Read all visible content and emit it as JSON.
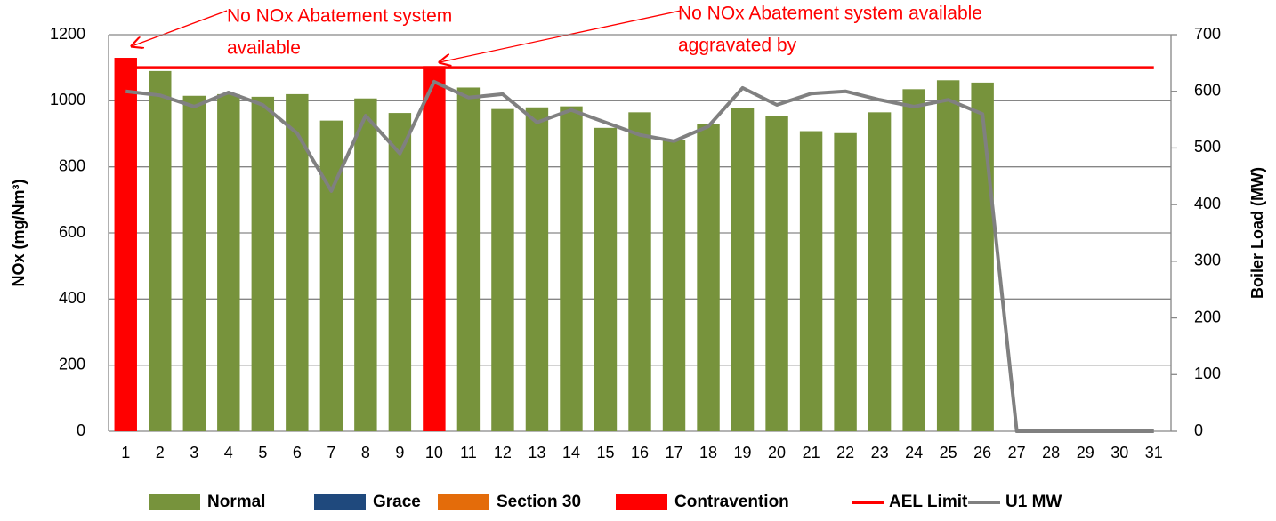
{
  "chart_data": {
    "type": "bar",
    "categories": [
      "1",
      "2",
      "3",
      "4",
      "5",
      "6",
      "7",
      "8",
      "9",
      "10",
      "11",
      "12",
      "13",
      "14",
      "15",
      "16",
      "17",
      "18",
      "19",
      "20",
      "21",
      "22",
      "23",
      "24",
      "25",
      "26",
      "27",
      "28",
      "29",
      "30",
      "31"
    ],
    "series": [
      {
        "name": "Normal",
        "type": "bar",
        "color": "#77933c",
        "values": [
          null,
          1090,
          1015,
          1020,
          1012,
          1020,
          940,
          1007,
          963,
          null,
          1040,
          975,
          980,
          983,
          918,
          965,
          880,
          930,
          977,
          953,
          908,
          902,
          965,
          1035,
          1062,
          1055,
          null,
          null,
          null,
          null,
          null
        ]
      },
      {
        "name": "Grace",
        "type": "bar",
        "color": "#1f497d",
        "values": [
          null,
          null,
          null,
          null,
          null,
          null,
          null,
          null,
          null,
          null,
          null,
          null,
          null,
          null,
          null,
          null,
          null,
          null,
          null,
          null,
          null,
          null,
          null,
          null,
          null,
          null,
          null,
          null,
          null,
          null,
          null
        ]
      },
      {
        "name": "Section 30",
        "type": "bar",
        "color": "#e46c0a",
        "values": [
          null,
          null,
          null,
          null,
          null,
          null,
          null,
          null,
          null,
          null,
          null,
          null,
          null,
          null,
          null,
          null,
          null,
          null,
          null,
          null,
          null,
          null,
          null,
          null,
          null,
          null,
          null,
          null,
          null,
          null,
          null
        ]
      },
      {
        "name": "Contravention",
        "type": "bar",
        "color": "#ff0000",
        "values": [
          1130,
          null,
          null,
          null,
          null,
          null,
          null,
          null,
          null,
          1105,
          null,
          null,
          null,
          null,
          null,
          null,
          null,
          null,
          null,
          null,
          null,
          null,
          null,
          null,
          null,
          null,
          null,
          null,
          null,
          null,
          null
        ]
      },
      {
        "name": "AEL Limit",
        "type": "line",
        "color": "#ff0000",
        "values": [
          1100,
          1100,
          1100,
          1100,
          1100,
          1100,
          1100,
          1100,
          1100,
          1100,
          1100,
          1100,
          1100,
          1100,
          1100,
          1100,
          1100,
          1100,
          1100,
          1100,
          1100,
          1100,
          1100,
          1100,
          1100,
          1100,
          1100,
          1100,
          1100,
          1100,
          1100
        ]
      },
      {
        "name": "U1 MW",
        "type": "line",
        "color": "#808080",
        "axis": "y2",
        "values": [
          600,
          593,
          573,
          598,
          576,
          526,
          424,
          557,
          490,
          617,
          589,
          595,
          545,
          567,
          545,
          523,
          512,
          538,
          606,
          576,
          596,
          600,
          585,
          573,
          585,
          560,
          0,
          0,
          0,
          0,
          0
        ]
      }
    ],
    "ylabel": "NOx (mg/Nm³)",
    "y2label": "Boiler Load (MW)",
    "ylim": [
      0,
      1200
    ],
    "yticks": [
      0,
      200,
      400,
      600,
      800,
      1000,
      1200
    ],
    "y2lim": [
      0,
      700
    ],
    "y2ticks": [
      0,
      100,
      200,
      300,
      400,
      500,
      600,
      700
    ],
    "grid": true,
    "legend": "bottom",
    "annotations": [
      [
        "No NOx Abatement system",
        "available"
      ],
      [
        "No NOx Abatement system available",
        "aggravated by"
      ]
    ]
  }
}
